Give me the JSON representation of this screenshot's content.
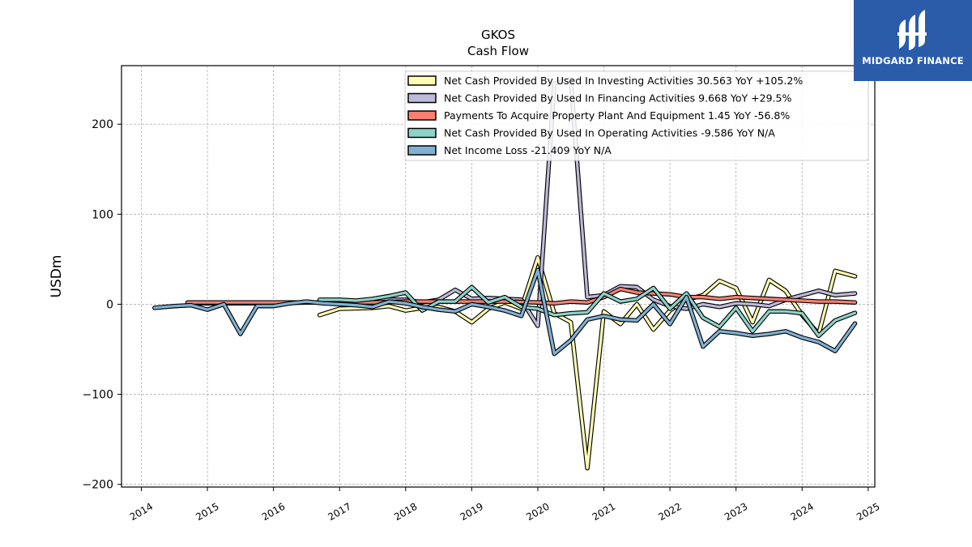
{
  "header": {
    "ticker": "GKOS",
    "subtitle": "Cash Flow"
  },
  "logo": {
    "text": "MIDGARD FINANCE",
    "background": "#2a5caa"
  },
  "chart_data": {
    "type": "line",
    "title": "GKOS",
    "subtitle": "Cash Flow",
    "xlabel": "",
    "ylabel": "USDm",
    "xlim": [
      2013.7,
      2025.1
    ],
    "ylim": [
      -203,
      265
    ],
    "x_ticks": [
      2014,
      2015,
      2016,
      2017,
      2018,
      2019,
      2020,
      2021,
      2022,
      2023,
      2024,
      2025
    ],
    "y_ticks": [
      -200,
      -100,
      0,
      100,
      200
    ],
    "y_tick_labels": [
      "−200",
      "−100",
      "0",
      "100",
      "200"
    ],
    "grid": true,
    "legend_position": "top-right",
    "series": [
      {
        "name": "Net Cash Provided By Used In Investing Activities",
        "legend": "Net Cash Provided By Used In Investing Activities  30.563 YoY +105.2%",
        "color": "#ffffb3",
        "points": [
          [
            2016.7,
            -12
          ],
          [
            2017.0,
            -5
          ],
          [
            2017.5,
            -4
          ],
          [
            2017.75,
            -2
          ],
          [
            2018.0,
            -7
          ],
          [
            2018.25,
            -4
          ],
          [
            2018.5,
            -3
          ],
          [
            2018.75,
            -8
          ],
          [
            2019.0,
            -20
          ],
          [
            2019.25,
            -5
          ],
          [
            2019.5,
            2
          ],
          [
            2019.75,
            -5
          ],
          [
            2020.0,
            52
          ],
          [
            2020.25,
            -10
          ],
          [
            2020.5,
            -20
          ],
          [
            2020.75,
            -182
          ],
          [
            2021.0,
            -8
          ],
          [
            2021.25,
            -22
          ],
          [
            2021.5,
            0
          ],
          [
            2021.75,
            -28
          ],
          [
            2022.0,
            -7
          ],
          [
            2022.25,
            5
          ],
          [
            2022.5,
            10
          ],
          [
            2022.75,
            26
          ],
          [
            2023.0,
            18
          ],
          [
            2023.25,
            -20
          ],
          [
            2023.5,
            27
          ],
          [
            2023.75,
            15
          ],
          [
            2024.0,
            -12
          ],
          [
            2024.25,
            -33
          ],
          [
            2024.5,
            37
          ],
          [
            2024.8,
            31
          ]
        ]
      },
      {
        "name": "Net Cash Provided By Used In Financing Activities",
        "legend": "Net Cash Provided By Used In Financing Activities  9.668 YoY +29.5%",
        "color": "#bebada",
        "points": [
          [
            2014.7,
            1
          ],
          [
            2015.0,
            1
          ],
          [
            2015.5,
            1
          ],
          [
            2016.0,
            1
          ],
          [
            2016.5,
            2
          ],
          [
            2017.0,
            2
          ],
          [
            2017.5,
            3
          ],
          [
            2017.75,
            5
          ],
          [
            2018.0,
            5
          ],
          [
            2018.25,
            2
          ],
          [
            2018.5,
            5
          ],
          [
            2018.75,
            16
          ],
          [
            2019.0,
            6
          ],
          [
            2019.25,
            7
          ],
          [
            2019.5,
            6
          ],
          [
            2019.75,
            5
          ],
          [
            2020.0,
            -24
          ],
          [
            2020.25,
            245
          ],
          [
            2020.5,
            250
          ],
          [
            2020.75,
            8
          ],
          [
            2021.0,
            10
          ],
          [
            2021.25,
            20
          ],
          [
            2021.5,
            19
          ],
          [
            2021.75,
            5
          ],
          [
            2022.0,
            -2
          ],
          [
            2022.25,
            -5
          ],
          [
            2022.5,
            0
          ],
          [
            2022.75,
            -3
          ],
          [
            2023.0,
            1
          ],
          [
            2023.25,
            0
          ],
          [
            2023.5,
            -2
          ],
          [
            2023.75,
            5
          ],
          [
            2024.0,
            10
          ],
          [
            2024.25,
            15
          ],
          [
            2024.5,
            10
          ],
          [
            2024.8,
            12
          ]
        ]
      },
      {
        "name": "Payments To Acquire Property Plant And Equipment",
        "legend": "Payments To Acquire Property Plant And Equipment  1.45 YoY -56.8%",
        "color": "#fb8072",
        "points": [
          [
            2014.7,
            2
          ],
          [
            2015.0,
            2
          ],
          [
            2015.5,
            2
          ],
          [
            2016.0,
            2
          ],
          [
            2016.5,
            2
          ],
          [
            2017.0,
            2
          ],
          [
            2017.5,
            2
          ],
          [
            2018.0,
            3
          ],
          [
            2018.5,
            3
          ],
          [
            2019.0,
            3
          ],
          [
            2019.5,
            3
          ],
          [
            2020.0,
            2
          ],
          [
            2020.25,
            1
          ],
          [
            2020.5,
            3
          ],
          [
            2020.75,
            2
          ],
          [
            2021.0,
            8
          ],
          [
            2021.25,
            17
          ],
          [
            2021.5,
            13
          ],
          [
            2021.75,
            12
          ],
          [
            2022.0,
            11
          ],
          [
            2022.25,
            8
          ],
          [
            2022.5,
            8
          ],
          [
            2022.75,
            6
          ],
          [
            2023.0,
            8
          ],
          [
            2023.25,
            7
          ],
          [
            2023.5,
            6
          ],
          [
            2023.75,
            5
          ],
          [
            2024.0,
            4
          ],
          [
            2024.25,
            3
          ],
          [
            2024.5,
            3
          ],
          [
            2024.8,
            2
          ]
        ]
      },
      {
        "name": "Net Cash Provided By Used In Operating Activities",
        "legend": "Net Cash Provided By Used In Operating Activities  -9.586 YoY N/A",
        "color": "#8dd3c7",
        "points": [
          [
            2016.7,
            5
          ],
          [
            2017.0,
            5
          ],
          [
            2017.25,
            4
          ],
          [
            2017.5,
            6
          ],
          [
            2017.75,
            9
          ],
          [
            2018.0,
            13
          ],
          [
            2018.25,
            -7
          ],
          [
            2018.5,
            3
          ],
          [
            2018.75,
            3
          ],
          [
            2019.0,
            19
          ],
          [
            2019.25,
            2
          ],
          [
            2019.5,
            8
          ],
          [
            2019.75,
            -3
          ],
          [
            2020.0,
            -5
          ],
          [
            2020.25,
            -12
          ],
          [
            2020.5,
            -10
          ],
          [
            2020.75,
            -9
          ],
          [
            2021.0,
            12
          ],
          [
            2021.25,
            3
          ],
          [
            2021.5,
            6
          ],
          [
            2021.75,
            18
          ],
          [
            2022.0,
            -5
          ],
          [
            2022.25,
            12
          ],
          [
            2022.5,
            -15
          ],
          [
            2022.75,
            -25
          ],
          [
            2023.0,
            -4
          ],
          [
            2023.25,
            -30
          ],
          [
            2023.5,
            -8
          ],
          [
            2023.75,
            -8
          ],
          [
            2024.0,
            -10
          ],
          [
            2024.25,
            -35
          ],
          [
            2024.5,
            -18
          ],
          [
            2024.8,
            -9.6
          ]
        ]
      },
      {
        "name": "Net Income Loss",
        "legend": "Net Income Loss  -21.409 YoY N/A",
        "color": "#80b1d3",
        "points": [
          [
            2014.2,
            -4
          ],
          [
            2014.5,
            -2
          ],
          [
            2014.75,
            -1
          ],
          [
            2015.0,
            -6
          ],
          [
            2015.25,
            0
          ],
          [
            2015.5,
            -33
          ],
          [
            2015.75,
            -2
          ],
          [
            2016.0,
            -2
          ],
          [
            2016.25,
            1
          ],
          [
            2016.5,
            3
          ],
          [
            2016.75,
            1
          ],
          [
            2017.0,
            0
          ],
          [
            2017.25,
            -1
          ],
          [
            2017.5,
            -3
          ],
          [
            2017.75,
            3
          ],
          [
            2018.0,
            1
          ],
          [
            2018.25,
            -3
          ],
          [
            2018.5,
            -6
          ],
          [
            2018.75,
            -8
          ],
          [
            2019.0,
            0
          ],
          [
            2019.25,
            -3
          ],
          [
            2019.5,
            -7
          ],
          [
            2019.75,
            -13
          ],
          [
            2020.0,
            38
          ],
          [
            2020.25,
            -55
          ],
          [
            2020.5,
            -40
          ],
          [
            2020.75,
            -17
          ],
          [
            2021.0,
            -13
          ],
          [
            2021.25,
            -17
          ],
          [
            2021.5,
            -18
          ],
          [
            2021.75,
            0
          ],
          [
            2022.0,
            -22
          ],
          [
            2022.25,
            8
          ],
          [
            2022.5,
            -47
          ],
          [
            2022.75,
            -30
          ],
          [
            2023.0,
            -32
          ],
          [
            2023.25,
            -35
          ],
          [
            2023.5,
            -33
          ],
          [
            2023.75,
            -30
          ],
          [
            2024.0,
            -37
          ],
          [
            2024.25,
            -42
          ],
          [
            2024.5,
            -52
          ],
          [
            2024.8,
            -21.4
          ]
        ]
      }
    ]
  }
}
